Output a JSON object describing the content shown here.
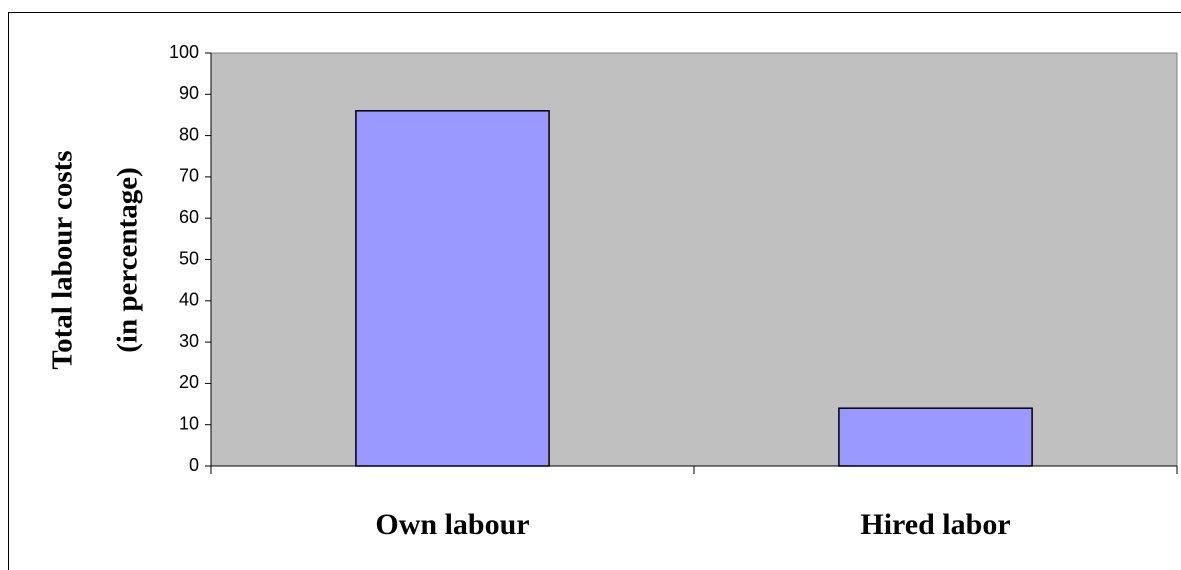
{
  "chart_data": {
    "type": "bar",
    "y_label": [
      "Total labour costs",
      "(in percentage)"
    ],
    "categories": [
      "Own labour",
      "Hired labor"
    ],
    "values": [
      86,
      14
    ],
    "color": "#9999ff",
    "plot_background": "#c0c0c0",
    "ylim": [
      0,
      100
    ],
    "yticks": [
      0,
      10,
      20,
      30,
      40,
      50,
      60,
      70,
      80,
      90,
      100
    ],
    "grid": false
  }
}
